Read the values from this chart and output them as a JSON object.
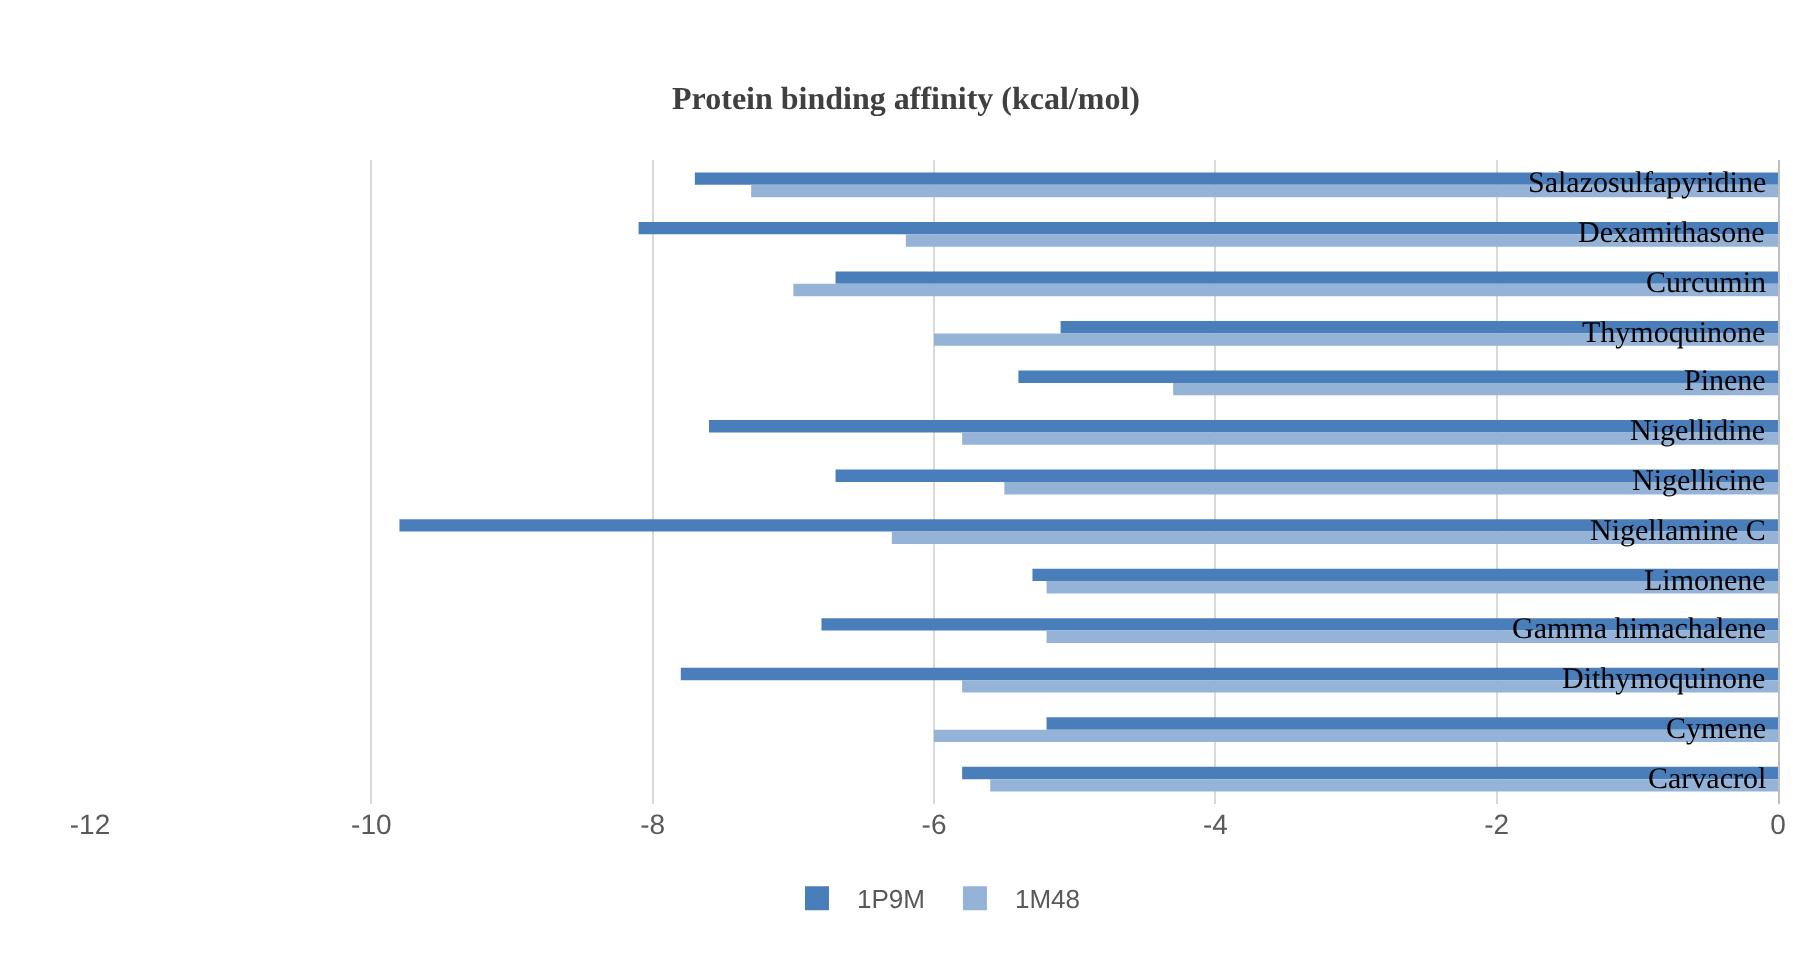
{
  "chart_data": {
    "type": "bar",
    "orientation": "horizontal",
    "title": "Protein binding affinity (kcal/mol)",
    "categories": [
      "Salazosulfapyridine",
      "Dexamithasone",
      "Curcumin",
      "Thymoquinone",
      "Pinene",
      "Nigellidine",
      "Nigellicine",
      "Nigellamine C",
      "Limonene",
      "Gamma himachalene",
      "Dithymoquinone",
      "Cymene",
      "Carvacrol"
    ],
    "series": [
      {
        "name": "1P9M",
        "color": "#4a7ebb",
        "values": [
          -7.7,
          -8.1,
          -6.7,
          -5.1,
          -5.4,
          -7.6,
          -6.7,
          -9.8,
          -5.3,
          -6.8,
          -7.8,
          -5.2,
          -5.8
        ]
      },
      {
        "name": "1M48",
        "color": "#95b3d7",
        "values": [
          -7.3,
          -6.2,
          -7.0,
          -6.0,
          -4.3,
          -5.8,
          -5.5,
          -6.3,
          -5.2,
          -5.2,
          -5.8,
          -6.0,
          -5.6
        ]
      }
    ],
    "xlim": [
      -12,
      0
    ],
    "xticks": [
      -12,
      -10,
      -8,
      -6,
      -4,
      -2,
      0
    ],
    "grid": "x",
    "legend": "bottom"
  }
}
